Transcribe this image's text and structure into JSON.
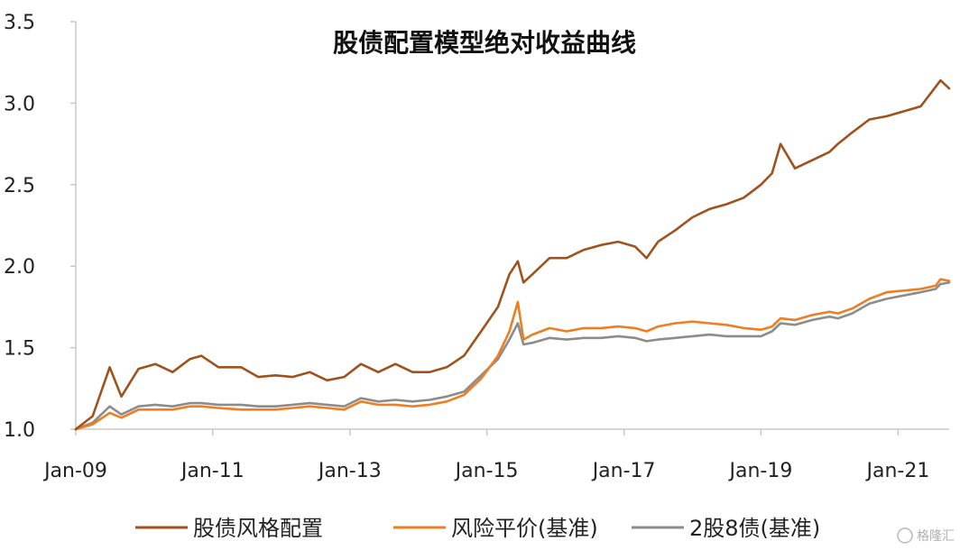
{
  "chart_data": {
    "type": "line",
    "title": "股债配置模型绝对收益曲线",
    "xlabel": "",
    "ylabel": "",
    "ylim": [
      1.0,
      3.5
    ],
    "y_ticks": [
      "1.0",
      "1.5",
      "2.0",
      "2.5",
      "3.0",
      "3.5"
    ],
    "x_ticks": [
      "Jan-09",
      "Jan-11",
      "Jan-13",
      "Jan-15",
      "Jan-17",
      "Jan-19",
      "Jan-21"
    ],
    "x_tick_dates": [
      "2009-01-01",
      "2011-01-01",
      "2013-01-01",
      "2015-01-01",
      "2017-01-01",
      "2019-01-01",
      "2021-01-01"
    ],
    "xlim": [
      "2009-01-01",
      "2021-09-30"
    ],
    "grid": false,
    "legend_position": "bottom",
    "x": [
      "2009-01-01",
      "2009-04-01",
      "2009-07-01",
      "2009-09-01",
      "2009-12-01",
      "2010-03-01",
      "2010-06-01",
      "2010-09-01",
      "2010-11-01",
      "2011-02-01",
      "2011-06-01",
      "2011-09-01",
      "2011-12-01",
      "2012-03-01",
      "2012-06-01",
      "2012-09-01",
      "2012-12-01",
      "2013-03-01",
      "2013-06-01",
      "2013-09-01",
      "2013-12-01",
      "2014-03-01",
      "2014-06-01",
      "2014-09-01",
      "2014-12-01",
      "2015-03-01",
      "2015-05-01",
      "2015-06-15",
      "2015-07-15",
      "2015-09-01",
      "2015-12-01",
      "2016-03-01",
      "2016-06-01",
      "2016-09-01",
      "2016-12-01",
      "2017-03-01",
      "2017-05-01",
      "2017-07-01",
      "2017-10-01",
      "2018-01-01",
      "2018-04-01",
      "2018-07-01",
      "2018-10-01",
      "2019-01-01",
      "2019-03-01",
      "2019-04-15",
      "2019-07-01",
      "2019-10-01",
      "2020-01-01",
      "2020-02-15",
      "2020-05-01",
      "2020-08-01",
      "2020-11-01",
      "2021-02-01",
      "2021-05-01",
      "2021-07-20",
      "2021-08-15",
      "2021-09-30"
    ],
    "series": [
      {
        "name": "股债风格配置",
        "color": "#a0521d",
        "values": [
          1.0,
          1.08,
          1.38,
          1.2,
          1.37,
          1.4,
          1.35,
          1.43,
          1.45,
          1.38,
          1.38,
          1.32,
          1.33,
          1.32,
          1.35,
          1.3,
          1.32,
          1.4,
          1.35,
          1.4,
          1.35,
          1.35,
          1.38,
          1.45,
          1.6,
          1.75,
          1.95,
          2.03,
          1.9,
          1.95,
          2.05,
          2.05,
          2.1,
          2.13,
          2.15,
          2.12,
          2.05,
          2.15,
          2.22,
          2.3,
          2.35,
          2.38,
          2.42,
          2.5,
          2.57,
          2.75,
          2.6,
          2.65,
          2.7,
          2.75,
          2.82,
          2.9,
          2.92,
          2.95,
          2.98,
          3.1,
          3.14,
          3.09
        ]
      },
      {
        "name": "风险平价(基准)",
        "color": "#ef7d22",
        "values": [
          1.0,
          1.03,
          1.1,
          1.07,
          1.12,
          1.12,
          1.12,
          1.14,
          1.14,
          1.13,
          1.12,
          1.12,
          1.12,
          1.13,
          1.14,
          1.13,
          1.12,
          1.17,
          1.15,
          1.15,
          1.14,
          1.15,
          1.17,
          1.21,
          1.31,
          1.45,
          1.6,
          1.78,
          1.55,
          1.58,
          1.62,
          1.6,
          1.62,
          1.62,
          1.63,
          1.62,
          1.6,
          1.63,
          1.65,
          1.66,
          1.65,
          1.64,
          1.62,
          1.61,
          1.63,
          1.68,
          1.67,
          1.7,
          1.72,
          1.71,
          1.74,
          1.8,
          1.84,
          1.85,
          1.86,
          1.88,
          1.92,
          1.91
        ]
      },
      {
        "name": "2股8债(基准)",
        "color": "#8c8c8c",
        "values": [
          1.0,
          1.04,
          1.14,
          1.09,
          1.14,
          1.15,
          1.14,
          1.16,
          1.16,
          1.15,
          1.15,
          1.14,
          1.14,
          1.15,
          1.16,
          1.15,
          1.14,
          1.19,
          1.17,
          1.18,
          1.17,
          1.18,
          1.2,
          1.23,
          1.33,
          1.43,
          1.55,
          1.65,
          1.52,
          1.53,
          1.56,
          1.55,
          1.56,
          1.56,
          1.57,
          1.56,
          1.54,
          1.55,
          1.56,
          1.57,
          1.58,
          1.57,
          1.57,
          1.57,
          1.6,
          1.65,
          1.64,
          1.67,
          1.69,
          1.68,
          1.71,
          1.77,
          1.8,
          1.82,
          1.84,
          1.86,
          1.89,
          1.9
        ]
      }
    ]
  },
  "watermark": "格隆汇"
}
